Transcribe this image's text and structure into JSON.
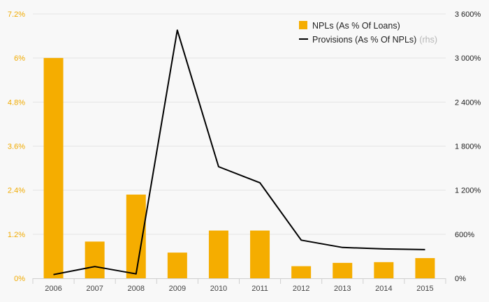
{
  "chart_data": {
    "type": "bar+line",
    "categories": [
      "2006",
      "2007",
      "2008",
      "2009",
      "2010",
      "2011",
      "2012",
      "2013",
      "2014",
      "2015"
    ],
    "series": [
      {
        "name": "NPLs (As % Of Loans)",
        "type": "bar",
        "axis": "left",
        "values": [
          6.0,
          1.0,
          2.28,
          0.7,
          1.3,
          1.3,
          0.33,
          0.42,
          0.44,
          0.55
        ]
      },
      {
        "name": "Provisions (As % Of NPLs)",
        "type": "line",
        "axis": "right",
        "values": [
          50,
          160,
          60,
          3380,
          1520,
          1300,
          520,
          420,
          400,
          390
        ]
      }
    ],
    "legend_note": "(rhs)",
    "left_axis": {
      "ylim": [
        0,
        7.2
      ],
      "ticks": [
        0,
        1.2,
        2.4,
        3.6,
        4.8,
        6,
        7.2
      ],
      "tick_labels": [
        "0%",
        "1.2%",
        "2.4%",
        "3.6%",
        "4.8%",
        "6%",
        "7.2%"
      ]
    },
    "right_axis": {
      "ylim": [
        0,
        3600
      ],
      "ticks": [
        0,
        600,
        1200,
        1800,
        2400,
        3000,
        3600
      ],
      "tick_labels": [
        "0%",
        "600%",
        "1 200%",
        "1 800%",
        "2 400%",
        "3 000%",
        "3 600%"
      ]
    },
    "grid": true,
    "legend_position": "top-right",
    "colors": {
      "bars": "#f5ad00",
      "line": "#000000",
      "left_ticks": "#f0aa00",
      "grid": "#e4e4e4"
    }
  }
}
